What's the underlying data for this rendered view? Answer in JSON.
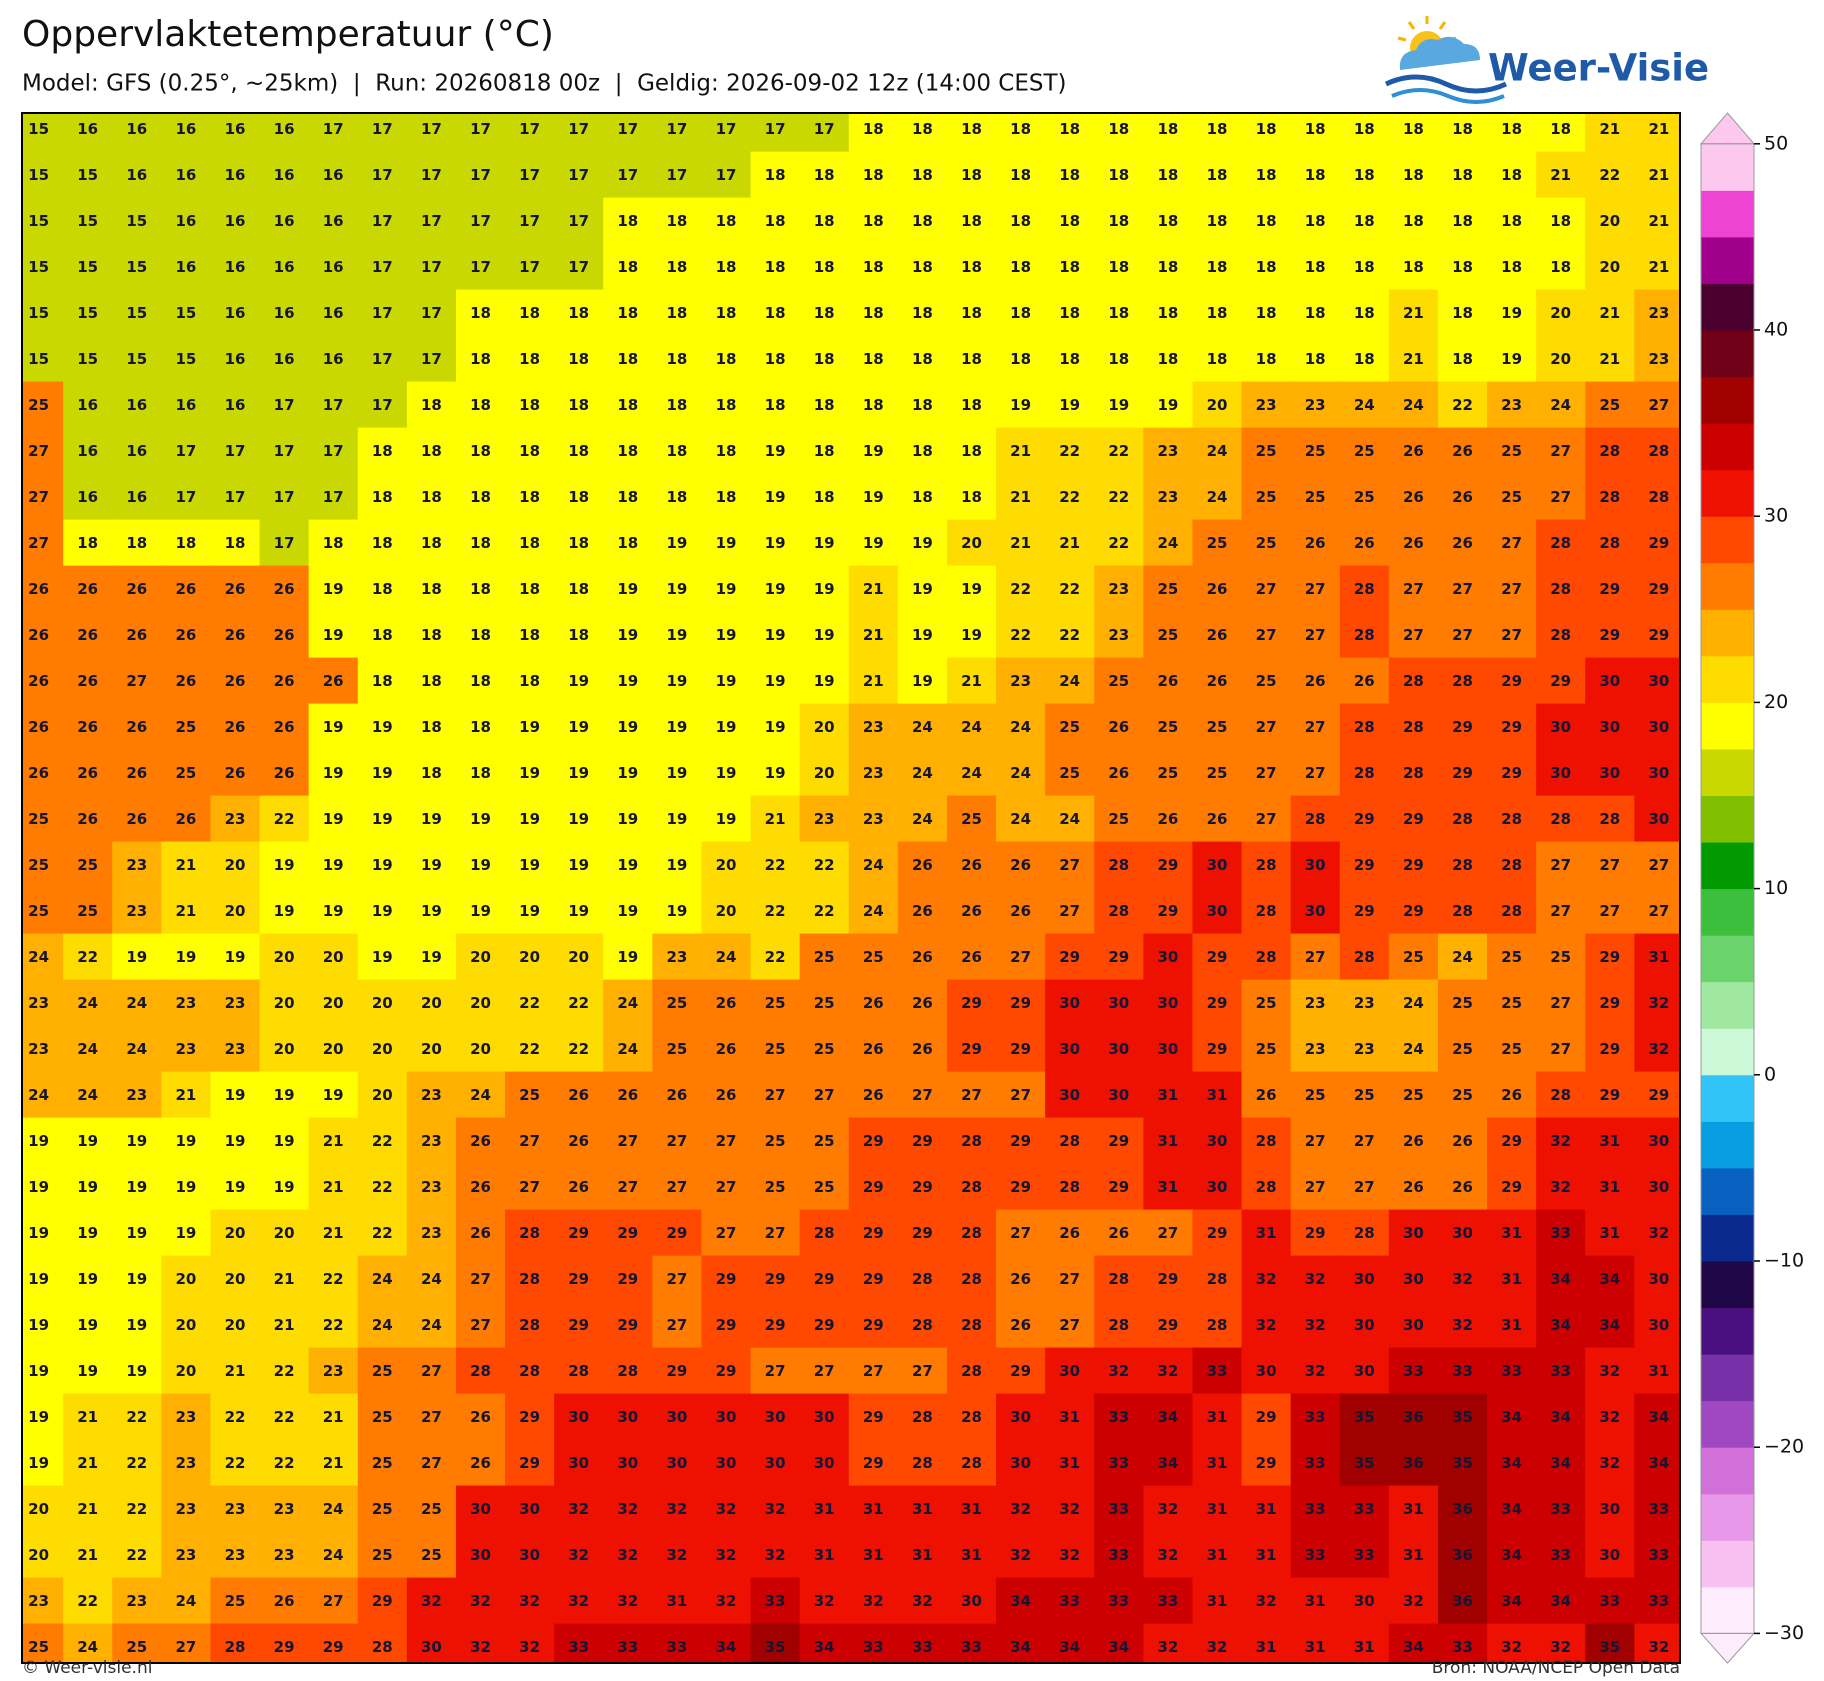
{
  "header": {
    "title": "Oppervlaktetemperatuur (°C)",
    "subtitle": "Model: GFS (0.25°, ~25km)  |  Run: 20260818 00z  |  Geldig: 2026-09-02 12z (14:00 CEST)"
  },
  "logo": {
    "text": "Weer-Visie"
  },
  "grid": {
    "rows": [
      [
        15,
        16,
        16,
        16,
        16,
        16,
        17,
        17,
        17,
        17,
        17,
        17,
        17,
        17,
        17,
        17,
        17,
        18,
        18,
        18,
        18,
        18,
        18,
        18,
        18,
        18,
        18,
        18,
        18,
        18,
        18,
        18,
        21,
        21
      ],
      [
        15,
        15,
        16,
        16,
        16,
        16,
        16,
        17,
        17,
        17,
        17,
        17,
        17,
        17,
        17,
        18,
        18,
        18,
        18,
        18,
        18,
        18,
        18,
        18,
        18,
        18,
        18,
        18,
        18,
        18,
        18,
        21,
        22,
        21
      ],
      [
        15,
        15,
        15,
        16,
        16,
        16,
        16,
        17,
        17,
        17,
        17,
        17,
        18,
        18,
        18,
        18,
        18,
        18,
        18,
        18,
        18,
        18,
        18,
        18,
        18,
        18,
        18,
        18,
        18,
        18,
        18,
        18,
        20,
        21
      ],
      [
        15,
        15,
        15,
        16,
        16,
        16,
        16,
        17,
        17,
        17,
        17,
        17,
        18,
        18,
        18,
        18,
        18,
        18,
        18,
        18,
        18,
        18,
        18,
        18,
        18,
        18,
        18,
        18,
        18,
        18,
        18,
        18,
        20,
        21
      ],
      [
        15,
        15,
        15,
        15,
        16,
        16,
        16,
        17,
        17,
        18,
        18,
        18,
        18,
        18,
        18,
        18,
        18,
        18,
        18,
        18,
        18,
        18,
        18,
        18,
        18,
        18,
        18,
        18,
        21,
        18,
        19,
        20,
        21,
        23
      ],
      [
        15,
        15,
        15,
        15,
        16,
        16,
        16,
        17,
        17,
        18,
        18,
        18,
        18,
        18,
        18,
        18,
        18,
        18,
        18,
        18,
        18,
        18,
        18,
        18,
        18,
        18,
        18,
        18,
        21,
        18,
        19,
        20,
        21,
        23
      ],
      [
        25,
        16,
        16,
        16,
        16,
        17,
        17,
        17,
        18,
        18,
        18,
        18,
        18,
        18,
        18,
        18,
        18,
        18,
        18,
        18,
        19,
        19,
        19,
        19,
        20,
        23,
        23,
        24,
        24,
        22,
        23,
        24,
        25,
        27
      ],
      [
        27,
        16,
        16,
        17,
        17,
        17,
        17,
        18,
        18,
        18,
        18,
        18,
        18,
        18,
        18,
        19,
        18,
        19,
        18,
        18,
        21,
        22,
        22,
        23,
        24,
        25,
        25,
        25,
        26,
        26,
        25,
        27,
        28,
        28
      ],
      [
        27,
        16,
        16,
        17,
        17,
        17,
        17,
        18,
        18,
        18,
        18,
        18,
        18,
        18,
        18,
        19,
        18,
        19,
        18,
        18,
        21,
        22,
        22,
        23,
        24,
        25,
        25,
        25,
        26,
        26,
        25,
        27,
        28,
        28
      ],
      [
        27,
        18,
        18,
        18,
        18,
        17,
        18,
        18,
        18,
        18,
        18,
        18,
        18,
        19,
        19,
        19,
        19,
        19,
        19,
        20,
        21,
        21,
        22,
        24,
        25,
        25,
        26,
        26,
        26,
        26,
        27,
        28,
        28,
        29
      ],
      [
        26,
        26,
        26,
        26,
        26,
        26,
        19,
        18,
        18,
        18,
        18,
        18,
        19,
        19,
        19,
        19,
        19,
        21,
        19,
        19,
        22,
        22,
        23,
        25,
        26,
        27,
        27,
        28,
        27,
        27,
        27,
        28,
        29,
        29
      ],
      [
        26,
        26,
        26,
        26,
        26,
        26,
        19,
        18,
        18,
        18,
        18,
        18,
        19,
        19,
        19,
        19,
        19,
        21,
        19,
        19,
        22,
        22,
        23,
        25,
        26,
        27,
        27,
        28,
        27,
        27,
        27,
        28,
        29,
        29
      ],
      [
        26,
        26,
        27,
        26,
        26,
        26,
        26,
        18,
        18,
        18,
        18,
        19,
        19,
        19,
        19,
        19,
        19,
        21,
        19,
        21,
        23,
        24,
        25,
        26,
        26,
        25,
        26,
        26,
        28,
        28,
        29,
        29,
        30,
        30
      ],
      [
        26,
        26,
        26,
        25,
        26,
        26,
        19,
        19,
        18,
        18,
        19,
        19,
        19,
        19,
        19,
        19,
        20,
        23,
        24,
        24,
        24,
        25,
        26,
        25,
        25,
        27,
        27,
        28,
        28,
        29,
        29,
        30,
        30,
        30
      ],
      [
        26,
        26,
        26,
        25,
        26,
        26,
        19,
        19,
        18,
        18,
        19,
        19,
        19,
        19,
        19,
        19,
        20,
        23,
        24,
        24,
        24,
        25,
        26,
        25,
        25,
        27,
        27,
        28,
        28,
        29,
        29,
        30,
        30,
        30
      ],
      [
        25,
        26,
        26,
        26,
        23,
        22,
        19,
        19,
        19,
        19,
        19,
        19,
        19,
        19,
        19,
        21,
        23,
        23,
        24,
        25,
        24,
        24,
        25,
        26,
        26,
        27,
        28,
        29,
        29,
        28,
        28,
        28,
        28,
        30
      ],
      [
        25,
        25,
        23,
        21,
        20,
        19,
        19,
        19,
        19,
        19,
        19,
        19,
        19,
        19,
        20,
        22,
        22,
        24,
        26,
        26,
        26,
        27,
        28,
        29,
        30,
        28,
        30,
        29,
        29,
        28,
        28,
        27,
        27,
        27
      ],
      [
        25,
        25,
        23,
        21,
        20,
        19,
        19,
        19,
        19,
        19,
        19,
        19,
        19,
        19,
        20,
        22,
        22,
        24,
        26,
        26,
        26,
        27,
        28,
        29,
        30,
        28,
        30,
        29,
        29,
        28,
        28,
        27,
        27,
        27
      ],
      [
        24,
        22,
        19,
        19,
        19,
        20,
        20,
        19,
        19,
        20,
        20,
        20,
        19,
        23,
        24,
        22,
        25,
        25,
        26,
        26,
        27,
        29,
        29,
        30,
        29,
        28,
        27,
        28,
        25,
        24,
        25,
        25,
        29,
        31
      ],
      [
        23,
        24,
        24,
        23,
        23,
        20,
        20,
        20,
        20,
        20,
        22,
        22,
        24,
        25,
        26,
        25,
        25,
        26,
        26,
        29,
        29,
        30,
        30,
        30,
        29,
        25,
        23,
        23,
        24,
        25,
        25,
        27,
        29,
        32
      ],
      [
        23,
        24,
        24,
        23,
        23,
        20,
        20,
        20,
        20,
        20,
        22,
        22,
        24,
        25,
        26,
        25,
        25,
        26,
        26,
        29,
        29,
        30,
        30,
        30,
        29,
        25,
        23,
        23,
        24,
        25,
        25,
        27,
        29,
        32
      ],
      [
        24,
        24,
        23,
        21,
        19,
        19,
        19,
        20,
        23,
        24,
        25,
        26,
        26,
        26,
        26,
        27,
        27,
        26,
        27,
        27,
        27,
        30,
        30,
        31,
        31,
        26,
        25,
        25,
        25,
        25,
        26,
        28,
        29,
        29
      ],
      [
        19,
        19,
        19,
        19,
        19,
        19,
        21,
        22,
        23,
        26,
        27,
        26,
        27,
        27,
        27,
        25,
        25,
        29,
        29,
        28,
        29,
        28,
        29,
        31,
        30,
        28,
        27,
        27,
        26,
        26,
        29,
        32,
        31,
        30
      ],
      [
        19,
        19,
        19,
        19,
        19,
        19,
        21,
        22,
        23,
        26,
        27,
        26,
        27,
        27,
        27,
        25,
        25,
        29,
        29,
        28,
        29,
        28,
        29,
        31,
        30,
        28,
        27,
        27,
        26,
        26,
        29,
        32,
        31,
        30
      ],
      [
        19,
        19,
        19,
        19,
        20,
        20,
        21,
        22,
        23,
        26,
        28,
        29,
        29,
        29,
        27,
        27,
        28,
        29,
        29,
        28,
        27,
        26,
        26,
        27,
        29,
        31,
        29,
        28,
        30,
        30,
        31,
        33,
        31,
        32
      ],
      [
        19,
        19,
        19,
        20,
        20,
        21,
        22,
        24,
        24,
        27,
        28,
        29,
        29,
        27,
        29,
        29,
        29,
        29,
        28,
        28,
        26,
        27,
        28,
        29,
        28,
        32,
        32,
        30,
        30,
        32,
        31,
        34,
        34,
        30
      ],
      [
        19,
        19,
        19,
        20,
        20,
        21,
        22,
        24,
        24,
        27,
        28,
        29,
        29,
        27,
        29,
        29,
        29,
        29,
        28,
        28,
        26,
        27,
        28,
        29,
        28,
        32,
        32,
        30,
        30,
        32,
        31,
        34,
        34,
        30
      ],
      [
        19,
        19,
        19,
        20,
        21,
        22,
        23,
        25,
        27,
        28,
        28,
        28,
        28,
        29,
        29,
        27,
        27,
        27,
        27,
        28,
        29,
        30,
        32,
        32,
        33,
        30,
        32,
        30,
        33,
        33,
        33,
        33,
        32,
        31
      ],
      [
        19,
        21,
        22,
        23,
        22,
        22,
        21,
        25,
        27,
        26,
        29,
        30,
        30,
        30,
        30,
        30,
        30,
        29,
        28,
        28,
        30,
        31,
        33,
        34,
        31,
        29,
        33,
        35,
        36,
        35,
        34,
        34,
        32,
        34
      ],
      [
        19,
        21,
        22,
        23,
        22,
        22,
        21,
        25,
        27,
        26,
        29,
        30,
        30,
        30,
        30,
        30,
        30,
        29,
        28,
        28,
        30,
        31,
        33,
        34,
        31,
        29,
        33,
        35,
        36,
        35,
        34,
        34,
        32,
        34
      ],
      [
        20,
        21,
        22,
        23,
        23,
        23,
        24,
        25,
        25,
        30,
        30,
        32,
        32,
        32,
        32,
        32,
        31,
        31,
        31,
        31,
        32,
        32,
        33,
        32,
        31,
        31,
        33,
        33,
        31,
        36,
        34,
        33,
        30,
        33
      ],
      [
        20,
        21,
        22,
        23,
        23,
        23,
        24,
        25,
        25,
        30,
        30,
        32,
        32,
        32,
        32,
        32,
        31,
        31,
        31,
        31,
        32,
        32,
        33,
        32,
        31,
        31,
        33,
        33,
        31,
        36,
        34,
        33,
        30,
        33
      ],
      [
        23,
        22,
        23,
        24,
        25,
        26,
        27,
        29,
        32,
        32,
        32,
        32,
        32,
        31,
        32,
        33,
        32,
        32,
        32,
        30,
        34,
        33,
        33,
        33,
        31,
        32,
        31,
        30,
        32,
        36,
        34,
        34,
        33,
        33
      ],
      [
        25,
        24,
        25,
        27,
        28,
        29,
        29,
        28,
        30,
        32,
        32,
        33,
        33,
        33,
        34,
        35,
        34,
        33,
        33,
        33,
        34,
        34,
        34,
        32,
        32,
        31,
        31,
        31,
        34,
        33,
        32,
        32,
        35,
        32
      ]
    ]
  },
  "colorbar": {
    "lim": [
      -30,
      50
    ],
    "ticks": [
      50,
      40,
      30,
      20,
      10,
      0,
      {
        "value": -10,
        "label": "−10"
      },
      {
        "value": -20,
        "label": "−20"
      },
      {
        "value": -30,
        "label": "−30"
      }
    ],
    "colors": [
      "#fdecfb",
      "#f8c0f0",
      "#e898e8",
      "#d070d8",
      "#a048c0",
      "#7830a8",
      "#4a1080",
      "#200848",
      "#0a2a90",
      "#0860c0",
      "#089ce0",
      "#30c4f8",
      "#ccfad8",
      "#a0e8a0",
      "#6cd46c",
      "#3cbf3c",
      "#009a00",
      "#80c000",
      "#c8d800",
      "#ffff00",
      "#ffdc00",
      "#ffb000",
      "#ff7c00",
      "#ff4800",
      "#ee1000",
      "#cc0000",
      "#a00000",
      "#700018",
      "#4c0030",
      "#a0008c",
      "#ee44d4",
      "#fcc8ee"
    ]
  },
  "footer": {
    "left": "© Weer-visie.nl",
    "right": "Bron: NOAA/NCEP Open Data"
  }
}
